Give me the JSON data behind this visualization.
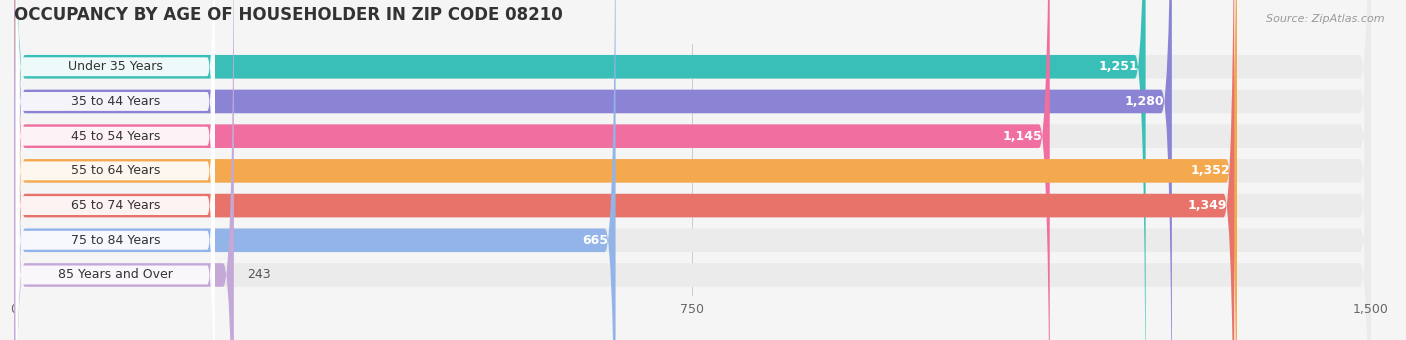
{
  "title": "OCCUPANCY BY AGE OF HOUSEHOLDER IN ZIP CODE 08210",
  "source": "Source: ZipAtlas.com",
  "categories": [
    "Under 35 Years",
    "35 to 44 Years",
    "45 to 54 Years",
    "55 to 64 Years",
    "65 to 74 Years",
    "75 to 84 Years",
    "85 Years and Over"
  ],
  "values": [
    1251,
    1280,
    1145,
    1352,
    1349,
    665,
    243
  ],
  "bar_colors": [
    "#3abfb8",
    "#8b84d4",
    "#f06ea0",
    "#f5a94e",
    "#e8736a",
    "#92b4e8",
    "#c4a8d8"
  ],
  "bar_bg_colors": [
    "#ebebeb",
    "#ebebeb",
    "#ebebeb",
    "#ebebeb",
    "#ebebeb",
    "#ebebeb",
    "#ebebeb"
  ],
  "label_bg_color": "#ffffff",
  "xlim": [
    0,
    1500
  ],
  "xticks": [
    0,
    750,
    1500
  ],
  "title_fontsize": 12,
  "label_fontsize": 9,
  "value_fontsize": 9,
  "background_color": "#f5f5f5",
  "bar_height": 0.68,
  "bar_gap": 0.08,
  "value_threshold": 400
}
